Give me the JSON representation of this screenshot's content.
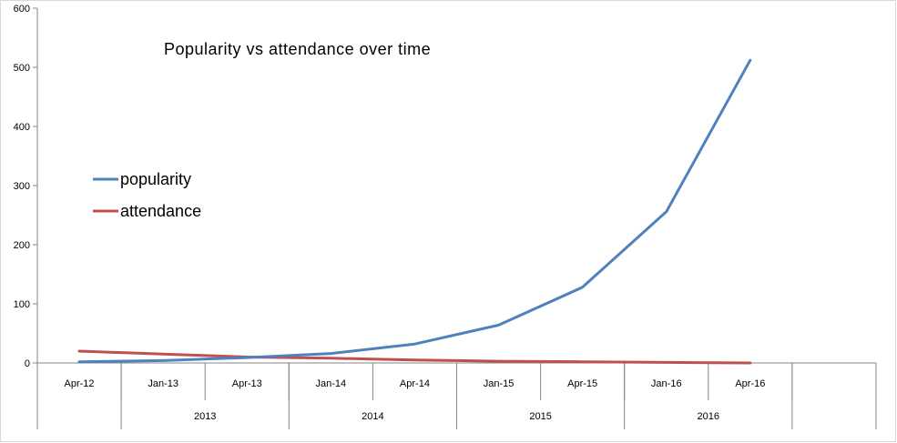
{
  "chart_data": {
    "type": "line",
    "title": "Popularity vs attendance over time",
    "xlabel": "",
    "ylabel": "",
    "ylim": [
      0,
      600
    ],
    "yticks": [
      0,
      100,
      200,
      300,
      400,
      500,
      600
    ],
    "categories": [
      "Apr-12",
      "Jan-13",
      "Apr-13",
      "Jan-14",
      "Apr-14",
      "Jan-15",
      "Apr-15",
      "Jan-16",
      "Apr-16"
    ],
    "groups": [
      {
        "label": "2013",
        "span": 2
      },
      {
        "label": "2014",
        "span": 2
      },
      {
        "label": "2015",
        "span": 2
      },
      {
        "label": "2016",
        "span": 2
      }
    ],
    "legend_position": "left",
    "grid": false,
    "series": [
      {
        "name": "popularity",
        "color": "#4f81bd",
        "values": [
          2,
          4,
          9,
          16,
          32,
          64,
          128,
          256,
          512
        ]
      },
      {
        "name": "attendance",
        "color": "#c0504d",
        "values": [
          20,
          15,
          10,
          8,
          5,
          3,
          2,
          1,
          0
        ]
      }
    ]
  }
}
